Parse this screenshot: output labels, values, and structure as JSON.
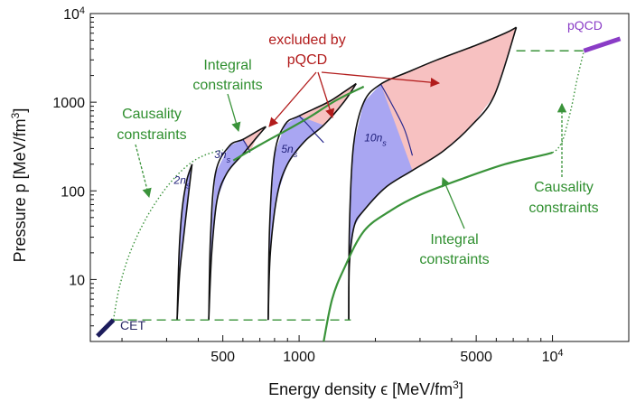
{
  "chart_data": {
    "type": "line",
    "title": "",
    "xlabel": "Energy density ϵ [MeV/fm3]",
    "ylabel": "Pressure p [MeV/fm3]",
    "x_scale": "log",
    "y_scale": "log",
    "xlim": [
      150,
      20000
    ],
    "ylim": [
      2.0,
      10000
    ],
    "x_ticks": [
      {
        "value": 500,
        "label": "500"
      },
      {
        "value": 1000,
        "label": "1000"
      },
      {
        "value": 5000,
        "label": "5000"
      },
      {
        "value": 10000,
        "label": "10",
        "sup": "4"
      }
    ],
    "y_ticks": [
      {
        "value": 10,
        "label": "10"
      },
      {
        "value": 100,
        "label": "100"
      },
      {
        "value": 1000,
        "label": "1000"
      },
      {
        "value": 10000,
        "label": "10",
        "sup": "4"
      }
    ],
    "grid": false,
    "legend": "none",
    "colors": {
      "allowed_fill": "#a9a6f2",
      "allowed_edge": "#2b2b8f",
      "excluded_fill": "#f7c1c1",
      "boundary": "#111111",
      "integral_green": "#3a933a",
      "causality_green": "#3a933a",
      "cet_bar": "#1c1c5c",
      "pqcd_bar": "#8a3cc6",
      "annotation_red": "#b21c1c"
    },
    "series": [
      {
        "name": "2ns",
        "upper": [
          [
            330,
            3.5
          ],
          [
            336,
            20
          ],
          [
            345,
            60
          ],
          [
            360,
            130
          ],
          [
            378,
            200
          ]
        ],
        "lower": [
          [
            330,
            3.5
          ],
          [
            338,
            12
          ],
          [
            350,
            30
          ],
          [
            364,
            80
          ],
          [
            378,
            200
          ]
        ],
        "allowed_cap": [],
        "excluded_tip": []
      },
      {
        "name": "3ns",
        "upper": [
          [
            440,
            3.5
          ],
          [
            447,
            30
          ],
          [
            468,
            160
          ],
          [
            530,
            320
          ],
          [
            600,
            380
          ],
          [
            700,
            490
          ],
          [
            740,
            530
          ]
        ],
        "lower": [
          [
            440,
            3.5
          ],
          [
            452,
            20
          ],
          [
            475,
            80
          ],
          [
            520,
            160
          ],
          [
            600,
            260
          ],
          [
            680,
            400
          ],
          [
            740,
            530
          ]
        ],
        "allowed_cap": [
          [
            600,
            380
          ],
          [
            615,
            340
          ],
          [
            630,
            300
          ],
          [
            640,
            270
          ]
        ],
        "excluded_tip": [
          [
            600,
            380
          ],
          [
            700,
            490
          ],
          [
            740,
            530
          ],
          [
            680,
            400
          ],
          [
            640,
            270
          ]
        ]
      },
      {
        "name": "5ns",
        "upper": [
          [
            755,
            3.5
          ],
          [
            765,
            40
          ],
          [
            800,
            260
          ],
          [
            880,
            560
          ],
          [
            1000,
            700
          ],
          [
            1300,
            1000
          ],
          [
            1500,
            1300
          ],
          [
            1680,
            1620
          ]
        ],
        "lower": [
          [
            755,
            3.5
          ],
          [
            770,
            20
          ],
          [
            820,
            90
          ],
          [
            900,
            200
          ],
          [
            1050,
            360
          ],
          [
            1250,
            550
          ],
          [
            1500,
            1000
          ],
          [
            1680,
            1620
          ]
        ],
        "allowed_cap": [
          [
            1000,
            700
          ],
          [
            1080,
            560
          ],
          [
            1160,
            440
          ],
          [
            1250,
            350
          ]
        ],
        "excluded_tip": [
          [
            1000,
            700
          ],
          [
            1300,
            1000
          ],
          [
            1500,
            1300
          ],
          [
            1680,
            1620
          ],
          [
            1500,
            1000
          ],
          [
            1250,
            550
          ]
        ]
      },
      {
        "name": "10ns",
        "upper": [
          [
            1570,
            3.5
          ],
          [
            1580,
            40
          ],
          [
            1640,
            330
          ],
          [
            1800,
            1000
          ],
          [
            2100,
            1600
          ],
          [
            2700,
            2200
          ],
          [
            3500,
            3000
          ],
          [
            5000,
            4400
          ],
          [
            6500,
            6000
          ],
          [
            7200,
            7000
          ]
        ],
        "lower": [
          [
            1570,
            3.5
          ],
          [
            1580,
            15
          ],
          [
            1650,
            40
          ],
          [
            1800,
            60
          ],
          [
            2200,
            110
          ],
          [
            2800,
            170
          ],
          [
            3700,
            280
          ],
          [
            4800,
            550
          ],
          [
            5900,
            1200
          ],
          [
            7200,
            7000
          ]
        ],
        "allowed_cap": [
          [
            2100,
            1600
          ],
          [
            2300,
            1000
          ],
          [
            2600,
            500
          ],
          [
            2800,
            250
          ]
        ],
        "excluded_tip": [
          [
            2100,
            1600
          ],
          [
            2700,
            2200
          ],
          [
            3500,
            3000
          ],
          [
            5000,
            4400
          ],
          [
            6500,
            6000
          ],
          [
            7200,
            7000
          ],
          [
            5900,
            1200
          ],
          [
            4800,
            550
          ],
          [
            3700,
            280
          ],
          [
            2800,
            170
          ]
        ]
      }
    ],
    "integral_upper_green": [
      [
        550,
        220
      ],
      [
        700,
        330
      ],
      [
        900,
        490
      ],
      [
        1100,
        680
      ],
      [
        1400,
        1050
      ],
      [
        1800,
        1500
      ]
    ],
    "integral_lower_green": [
      [
        1250,
        2.0
      ],
      [
        1350,
        6
      ],
      [
        1500,
        13
      ],
      [
        1800,
        35
      ],
      [
        2300,
        60
      ],
      [
        3000,
        90
      ],
      [
        4500,
        140
      ],
      [
        6500,
        200
      ],
      [
        9000,
        250
      ],
      [
        10000,
        270
      ]
    ],
    "causality_left_dotted": [
      [
        185,
        3.5
      ],
      [
        195,
        8
      ],
      [
        215,
        20
      ],
      [
        250,
        50
      ],
      [
        300,
        110
      ],
      [
        360,
        190
      ],
      [
        420,
        250
      ],
      [
        500,
        290
      ]
    ],
    "causality_right_dotted": [
      [
        10000,
        270
      ],
      [
        10500,
        300
      ],
      [
        11000,
        380
      ],
      [
        11500,
        600
      ],
      [
        12000,
        1000
      ],
      [
        12500,
        1800
      ],
      [
        13300,
        3800
      ]
    ],
    "cet_baseline_dashed": [
      [
        185,
        3.5
      ],
      [
        1600,
        3.5
      ]
    ],
    "pqcd_baseline_dashed": [
      [
        7200,
        3800
      ],
      [
        13300,
        3800
      ]
    ],
    "cet_segment": [
      [
        160,
        2.3
      ],
      [
        185,
        3.5
      ]
    ],
    "pqcd_segment": [
      [
        13300,
        3800
      ],
      [
        18500,
        5200
      ]
    ],
    "annotations": {
      "excluded_by": "excluded by",
      "pqcd": "pQCD",
      "integral_top_1": "Integral",
      "integral_top_2": "constraints",
      "causality_left_1": "Causality",
      "causality_left_2": "constraints",
      "integral_bottom_1": "Integral",
      "integral_bottom_2": "constraints",
      "causality_right_1": "Causality",
      "causality_right_2": "constraints",
      "cet": "CET",
      "pqcd_label": "pQCD",
      "band_2": "2n",
      "band_3": "3n",
      "band_5": "5n",
      "band_10": "10n",
      "sub_s": "s"
    }
  }
}
